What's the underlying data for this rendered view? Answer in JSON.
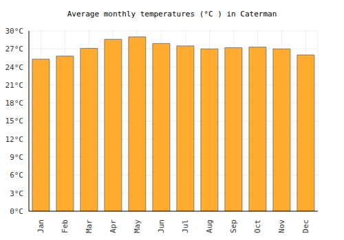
{
  "chart_data": {
    "type": "bar",
    "title": "Average monthly temperatures (°C ) in Caterman",
    "categories": [
      "Jan",
      "Feb",
      "Mar",
      "Apr",
      "May",
      "Jun",
      "Jul",
      "Aug",
      "Sep",
      "Oct",
      "Nov",
      "Dec"
    ],
    "values": [
      25.3,
      25.8,
      27.1,
      28.6,
      29.0,
      27.9,
      27.5,
      27.0,
      27.2,
      27.3,
      27.0,
      26.0
    ],
    "color": "#ffac30",
    "ylim": [
      0,
      30
    ],
    "yticks": [
      {
        "value": 0,
        "label": "0°C"
      },
      {
        "value": 3,
        "label": "3°C"
      },
      {
        "value": 6,
        "label": "6°C"
      },
      {
        "value": 9,
        "label": "9°C"
      },
      {
        "value": 12,
        "label": "12°C"
      },
      {
        "value": 15,
        "label": "15°C"
      },
      {
        "value": 18,
        "label": "18°C"
      },
      {
        "value": 21,
        "label": "21°C"
      },
      {
        "value": 24,
        "label": "24°C"
      },
      {
        "value": 27,
        "label": "27°C"
      },
      {
        "value": 30,
        "label": "30°C"
      }
    ],
    "grid": true
  }
}
